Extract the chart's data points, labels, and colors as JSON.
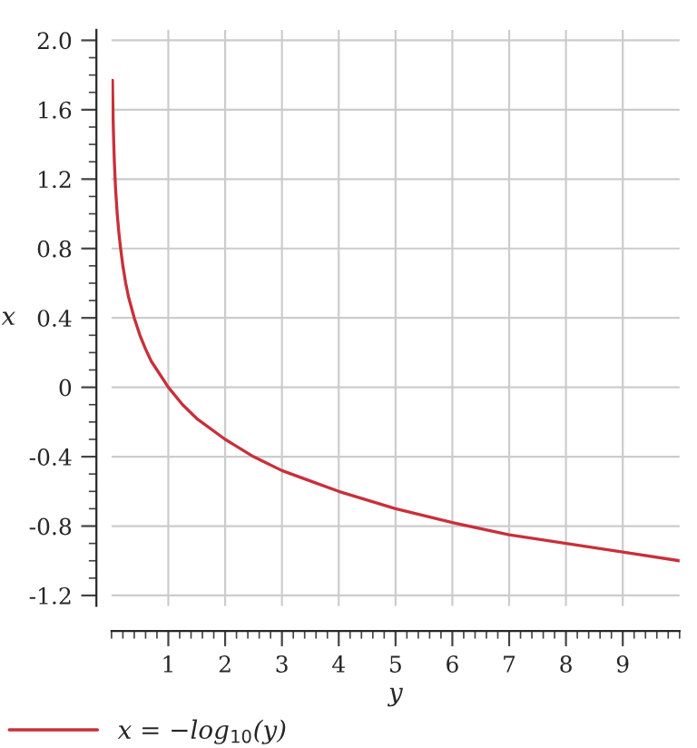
{
  "chart_data": {
    "type": "line",
    "xlabel": "y",
    "ylabel": "x",
    "x": [
      0.017,
      0.02,
      0.03,
      0.04,
      0.05,
      0.07,
      0.1,
      0.13,
      0.16,
      0.2,
      0.25,
      0.3,
      0.4,
      0.5,
      0.6,
      0.7,
      0.8,
      1,
      1.25,
      1.5,
      2,
      2.5,
      3,
      3.5,
      4,
      5,
      6,
      7,
      8,
      9,
      10
    ],
    "series": [
      {
        "name": "x = −log$_{10}$(y)",
        "color": "#c8303a",
        "values": [
          1.77,
          1.7,
          1.52,
          1.4,
          1.3,
          1.15,
          1.0,
          0.89,
          0.8,
          0.7,
          0.6,
          0.52,
          0.4,
          0.3,
          0.22,
          0.15,
          0.1,
          0.0,
          -0.1,
          -0.18,
          -0.3,
          -0.4,
          -0.48,
          -0.54,
          -0.6,
          -0.7,
          -0.78,
          -0.85,
          -0.9,
          -0.95,
          -1.0
        ]
      }
    ],
    "xlim": [
      0,
      10
    ],
    "xticks": [
      1,
      2,
      3,
      4,
      5,
      6,
      7,
      8,
      9
    ],
    "ylim": [
      -1.26,
      2.06
    ],
    "yticks": [
      -1.2,
      -0.8,
      -0.4,
      0,
      0.4,
      0.8,
      1.2,
      1.6,
      {
        "value": 2,
        "label": "2.0"
      }
    ],
    "grid": true,
    "legend": "bottom",
    "marker": "none",
    "line_style": "solid"
  }
}
